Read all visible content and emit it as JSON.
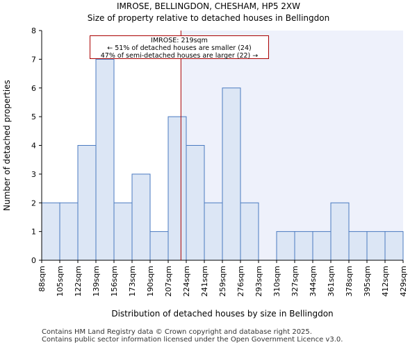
{
  "chart_data": {
    "type": "bar",
    "title": "IMROSE, BELLINGDON, CHESHAM, HP5 2XW",
    "subtitle": "Size of property relative to detached houses in Bellingdon",
    "xlabel": "Distribution of detached houses by size in Bellingdon",
    "ylabel": "Number of detached properties",
    "bin_edges": [
      88,
      105,
      122,
      139,
      156,
      173,
      190,
      207,
      224,
      241,
      259,
      276,
      293,
      310,
      327,
      344,
      361,
      378,
      395,
      412,
      429
    ],
    "tick_labels": [
      "88sqm",
      "105sqm",
      "122sqm",
      "139sqm",
      "156sqm",
      "173sqm",
      "190sqm",
      "207sqm",
      "224sqm",
      "241sqm",
      "259sqm",
      "276sqm",
      "293sqm",
      "310sqm",
      "327sqm",
      "344sqm",
      "361sqm",
      "378sqm",
      "395sqm",
      "412sqm",
      "429sqm"
    ],
    "values": [
      2,
      2,
      4,
      7,
      2,
      3,
      1,
      5,
      4,
      2,
      6,
      2,
      0,
      1,
      1,
      1,
      2,
      1,
      1,
      1
    ],
    "ylim": [
      0,
      8
    ],
    "yticks": [
      0,
      1,
      2,
      3,
      4,
      5,
      6,
      7,
      8
    ],
    "marker_value": 219,
    "highlight_from": 219,
    "colors": {
      "bar_fill": "#dce6f5",
      "bar_stroke": "#4a7ac0",
      "marker": "#aa0000",
      "highlight_bg": "#eef1fb"
    },
    "annotation": {
      "line1": "IMROSE: 219sqm",
      "line2": "← 51% of detached houses are smaller (24)",
      "line3": "47% of semi-detached houses are larger (22) →"
    }
  },
  "footer": {
    "line1": "Contains HM Land Registry data © Crown copyright and database right 2025.",
    "line2": "Contains public sector information licensed under the Open Government Licence v3.0."
  }
}
